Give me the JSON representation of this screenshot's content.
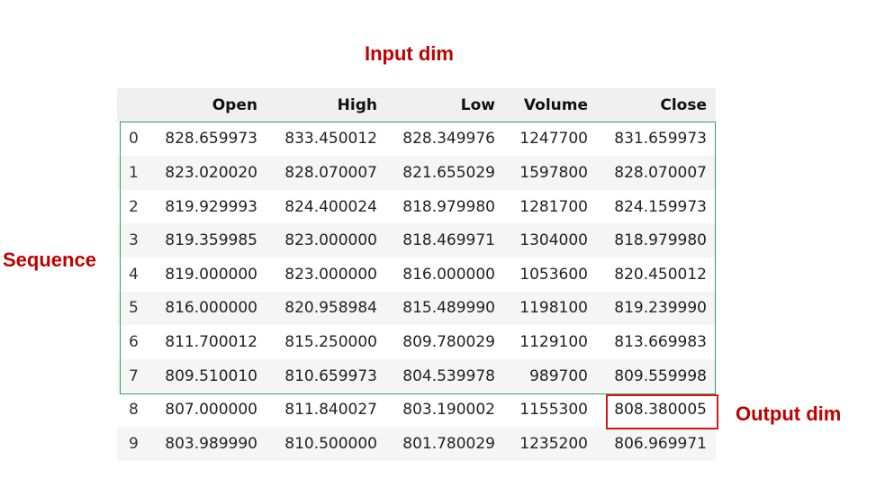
{
  "annotations": {
    "input_dim": "Input dim",
    "sequence": "Sequence",
    "output_dim": "Output dim"
  },
  "colors": {
    "annotation_text": "#c00000",
    "sequence_box": "#2e9e6b",
    "output_box": "#d9181d",
    "header_bg": "#f0f0f0",
    "stripe_bg": "#f5f5f5"
  },
  "table": {
    "columns": [
      "Open",
      "High",
      "Low",
      "Volume",
      "Close"
    ],
    "rows": [
      {
        "index": "0",
        "values": [
          "828.659973",
          "833.450012",
          "828.349976",
          "1247700",
          "831.659973"
        ]
      },
      {
        "index": "1",
        "values": [
          "823.020020",
          "828.070007",
          "821.655029",
          "1597800",
          "828.070007"
        ]
      },
      {
        "index": "2",
        "values": [
          "819.929993",
          "824.400024",
          "818.979980",
          "1281700",
          "824.159973"
        ]
      },
      {
        "index": "3",
        "values": [
          "819.359985",
          "823.000000",
          "818.469971",
          "1304000",
          "818.979980"
        ]
      },
      {
        "index": "4",
        "values": [
          "819.000000",
          "823.000000",
          "816.000000",
          "1053600",
          "820.450012"
        ]
      },
      {
        "index": "5",
        "values": [
          "816.000000",
          "820.958984",
          "815.489990",
          "1198100",
          "819.239990"
        ]
      },
      {
        "index": "6",
        "values": [
          "811.700012",
          "815.250000",
          "809.780029",
          "1129100",
          "813.669983"
        ]
      },
      {
        "index": "7",
        "values": [
          "809.510010",
          "810.659973",
          "804.539978",
          "989700",
          "809.559998"
        ]
      },
      {
        "index": "8",
        "values": [
          "807.000000",
          "811.840027",
          "803.190002",
          "1155300",
          "808.380005"
        ]
      },
      {
        "index": "9",
        "values": [
          "803.989990",
          "810.500000",
          "801.780029",
          "1235200",
          "806.969971"
        ]
      }
    ]
  }
}
